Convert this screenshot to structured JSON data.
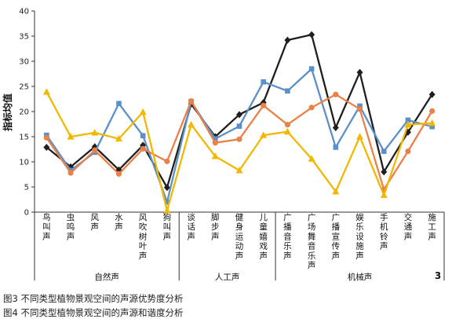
{
  "chart_data": {
    "type": "line",
    "ylabel": "指标均值",
    "ylim": [
      0,
      40
    ],
    "yticks": [
      0,
      5,
      10,
      15,
      20,
      25,
      30,
      35,
      40
    ],
    "grid": false,
    "categories": [
      "鸟叫声",
      "虫鸣声",
      "风声",
      "水声",
      "风吹树叶声",
      "狗叫声",
      "谈话声",
      "脚步声",
      "健身运动声",
      "儿童嬉戏声",
      "广播音乐声",
      "广场舞音乐声",
      "广播宣传声",
      "娱乐设施声",
      "手机铃声",
      "交通声",
      "施工声"
    ],
    "groups": [
      {
        "label": "自然声",
        "start": 0,
        "end": 5
      },
      {
        "label": "人工声",
        "start": 6,
        "end": 9
      },
      {
        "label": "机械声",
        "start": 10,
        "end": 16
      }
    ],
    "series": [
      {
        "color": "#1f1f1f",
        "marker": "diamond",
        "values": [
          12.9,
          9.0,
          13.0,
          8.4,
          13.3,
          4.9,
          21.5,
          15.0,
          19.4,
          21.8,
          34.2,
          35.3,
          16.8,
          27.8,
          8.0,
          15.9,
          23.4
        ]
      },
      {
        "color": "#5b8fc7",
        "marker": "square",
        "values": [
          15.3,
          8.3,
          11.9,
          21.6,
          15.2,
          2.0,
          22.0,
          14.6,
          17.1,
          25.9,
          24.1,
          28.5,
          12.9,
          21.1,
          12.1,
          18.3,
          17.0
        ]
      },
      {
        "color": "#e8824a",
        "marker": "circle",
        "values": [
          14.8,
          7.8,
          12.3,
          7.6,
          12.6,
          10.1,
          22.1,
          13.8,
          14.5,
          21.2,
          17.4,
          20.8,
          23.4,
          20.5,
          4.5,
          12.1,
          20.1
        ]
      },
      {
        "color": "#f2b700",
        "marker": "triangle",
        "values": [
          23.9,
          15.0,
          15.8,
          14.6,
          19.9,
          0.3,
          17.4,
          11.1,
          8.3,
          15.3,
          16.0,
          10.6,
          4.1,
          15.0,
          3.4,
          17.4,
          17.7
        ]
      }
    ],
    "annotation": "3"
  },
  "captions": [
    "图3 不同类型植物景观空间的声源优势度分析",
    "图4 不同类型植物景观空间的声源和谐度分析"
  ]
}
